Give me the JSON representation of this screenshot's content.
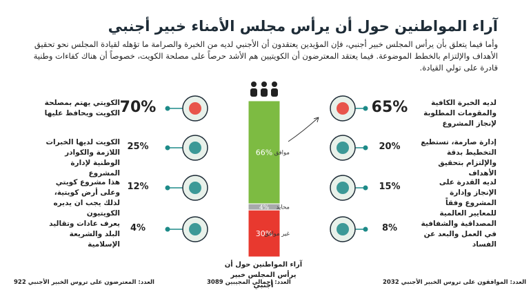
{
  "title": "آراء المواطنين حول أن يرأس مجلس الأمناء خبير أجنبي",
  "intro": "وأما فيما يتعلق بأن يرأس المجلس خبير أجنبي، فإن المؤيدين يعتقدون أن الأجنبي لديه من الخبرة والصرامة ما تؤهله لقيادة المجلس نحو تحقيق الأهداف والإلتزام بالخطط الموضوعة. فيما يعتقد المعترضون أن الكويتيين هم الأشد حرصاً على مصلحة الكويت، خصوصاً أن هناك كفاءات وطنية قادرة على تولي القيادة.",
  "center": {
    "segments": [
      {
        "name": "موافق",
        "value": 66,
        "label": "66%",
        "color": "#7dbb42"
      },
      {
        "name": "محايد",
        "value": 4,
        "label": "4%",
        "color": "#a7a9ac"
      },
      {
        "name": "غير موافق",
        "value": 30,
        "label": "30%",
        "color": "#e8392f"
      }
    ],
    "caption": "آراء المواطنين حول أن يرأس المجلس خبير أجنبي",
    "count": "العدد: إجمالي المجيبين 3089"
  },
  "left": {
    "items": [
      {
        "percent": "70%",
        "text": "الكويتي يهتم بمصلحة الكويت ويحافظ عليها"
      },
      {
        "percent": "25%",
        "text": "الكويت لديها الخبرات اللازمة والكوادر الوطنية لإدارة المشروع"
      },
      {
        "percent": "12%",
        "text": "هذا مشروع كويتي وعلى أرض كويتية، لذلك يجب ان يديره الكويتيون"
      },
      {
        "percent": "4%",
        "text": "يعرف عادات وتقاليد البلد والشريعة الإسلامية"
      }
    ],
    "count": "العدد: المعترضون على تروس الخبير الأجنبي 922"
  },
  "right": {
    "items": [
      {
        "percent": "65%",
        "text": "لديه الخبرة الكافية والمقومات المطلوبة لإنجاز المشروع"
      },
      {
        "percent": "20%",
        "text": "إدارة صارمة، تستطيع التخطيط بدقة والإلتزام بتحقيق الأهداف"
      },
      {
        "percent": "15%",
        "text": "لديه القدرة على الإنجاز وإدارة المشروع وفقاً للمعايير العالمية"
      },
      {
        "percent": "8%",
        "text": "المصداقية والشفافية في العمل والبعد عن الفساد"
      }
    ],
    "count": "العدد: الموافقون على تروس الخبير الأجنبي 2032"
  }
}
